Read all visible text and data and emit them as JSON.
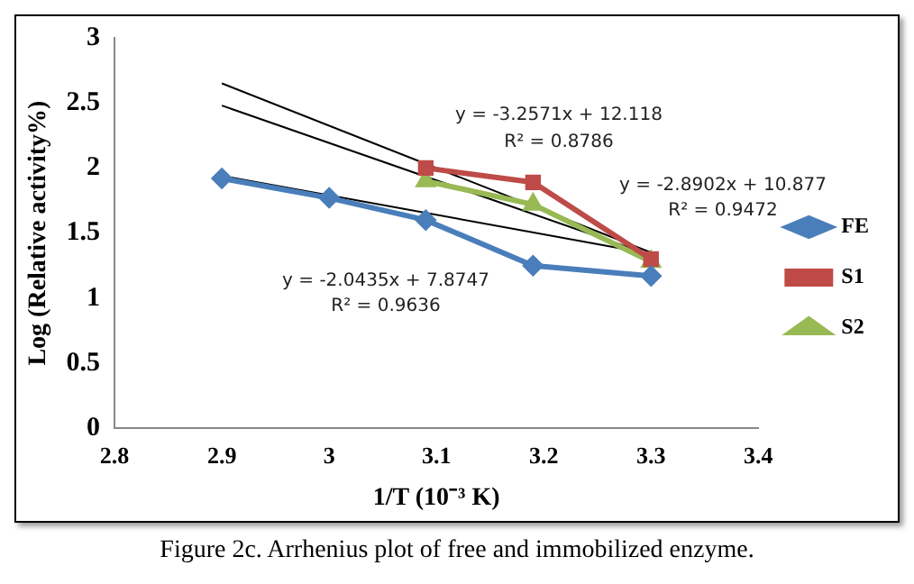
{
  "chart_data": {
    "type": "line",
    "xlabel": "1/T (10⁻³ K)",
    "ylabel": "Log (Relative activity%)",
    "xlim": [
      2.8,
      3.4
    ],
    "xticks": [
      2.8,
      2.9,
      3,
      3.1,
      3.2,
      3.3,
      3.4
    ],
    "ylim": [
      0,
      3
    ],
    "yticks": [
      0,
      0.5,
      1,
      1.5,
      2,
      2.5,
      3
    ],
    "grid": false,
    "legend": "right",
    "line_style": "solid",
    "series": [
      {
        "name": "FE",
        "color": "#4a7ebb",
        "marker": "diamond",
        "x": [
          2.9,
          3.0,
          3.09,
          3.19,
          3.3
        ],
        "values": [
          1.92,
          1.77,
          1.6,
          1.25,
          1.17
        ]
      },
      {
        "name": "S1",
        "color": "#be4b48",
        "marker": "square",
        "x": [
          3.09,
          3.19,
          3.3
        ],
        "values": [
          2.0,
          1.89,
          1.3
        ]
      },
      {
        "name": "S2",
        "color": "#98b954",
        "marker": "triangle",
        "x": [
          3.09,
          3.19,
          3.3
        ],
        "values": [
          1.9,
          1.72,
          1.28
        ]
      },
      {
        "color": "#000000",
        "marker": "none",
        "x": [
          2.9,
          3.3
        ],
        "values": [
          2.65,
          1.35
        ]
      },
      {
        "color": "#000000",
        "marker": "none",
        "x": [
          2.9,
          3.3
        ],
        "values": [
          2.48,
          1.33
        ]
      },
      {
        "color": "#000000",
        "marker": "none",
        "x": [
          2.9,
          3.3
        ],
        "values": [
          1.94,
          1.34
        ]
      }
    ],
    "annotations": [
      "y = -3.2571x + 12.118",
      "R² = 0.8786",
      "y = -2.8902x + 10.877",
      "R² = 0.9472",
      "y = -2.0435x + 7.8747",
      "R² = 0.9636",
      "Figure 2c. Arrhenius plot of free and immobilized enzyme."
    ]
  }
}
